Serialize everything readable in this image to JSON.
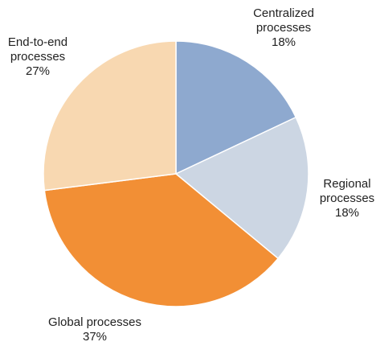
{
  "chart_data": {
    "type": "pie",
    "title": "",
    "unit": "%",
    "start_angle_deg": 0,
    "direction": "clockwise",
    "slices": [
      {
        "name": "Centralized processes",
        "value": 18,
        "label_lines": [
          "Centralized",
          "processes",
          "18%"
        ],
        "color": "#8EA9CF"
      },
      {
        "name": "Regional processes",
        "value": 18,
        "label_lines": [
          "Regional",
          "processes",
          "18%"
        ],
        "color": "#CCD6E3"
      },
      {
        "name": "Global processes",
        "value": 37,
        "label_lines": [
          "Global processes",
          "37%"
        ],
        "color": "#F28F35"
      },
      {
        "name": "End-to-end processes",
        "value": 27,
        "label_lines": [
          "End-to-end",
          "processes",
          "27%"
        ],
        "color": "#F8D8B1"
      }
    ]
  }
}
